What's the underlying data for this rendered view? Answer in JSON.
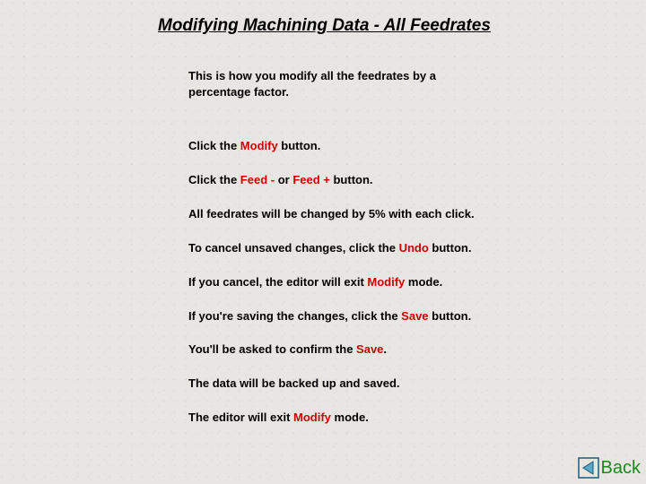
{
  "title": "Modifying Machining Data - All Feedrates",
  "intro": "This is how you modify all the feedrates by a percentage factor.",
  "colors": {
    "highlight": "#cc0000",
    "back_text": "#1a8a1a",
    "page_bg": "#e8e6e2",
    "text": "#000000",
    "back_icon_border": "#1a5a7a",
    "back_icon_fill": "#5ca8c8"
  },
  "steps": [
    {
      "segments": [
        {
          "t": "Click the "
        },
        {
          "t": "Modify",
          "hl": true
        },
        {
          "t": " button."
        }
      ]
    },
    {
      "segments": [
        {
          "t": "Click the "
        },
        {
          "t": "Feed -",
          "hl": true
        },
        {
          "t": " or "
        },
        {
          "t": "Feed +",
          "hl": true
        },
        {
          "t": " button."
        }
      ]
    },
    {
      "segments": [
        {
          "t": "All feedrates will be changed by 5% with each click."
        }
      ]
    },
    {
      "segments": [
        {
          "t": "To cancel unsaved changes, click the "
        },
        {
          "t": "Undo",
          "hl": true
        },
        {
          "t": " button."
        }
      ]
    },
    {
      "segments": [
        {
          "t": "If you cancel, the editor will exit "
        },
        {
          "t": "Modify",
          "hl": true
        },
        {
          "t": " mode."
        }
      ]
    },
    {
      "segments": [
        {
          "t": "If you're saving the changes, click the "
        },
        {
          "t": "Save",
          "hl": true
        },
        {
          "t": " button."
        }
      ]
    },
    {
      "segments": [
        {
          "t": "You'll be asked to confirm the "
        },
        {
          "t": "Save",
          "hl": true
        },
        {
          "t": "."
        }
      ]
    },
    {
      "segments": [
        {
          "t": "The data will be backed up and saved."
        }
      ]
    },
    {
      "segments": [
        {
          "t": "The editor will exit "
        },
        {
          "t": "Modify",
          "hl": true
        },
        {
          "t": " mode."
        }
      ]
    }
  ],
  "back": {
    "label": "Back"
  }
}
